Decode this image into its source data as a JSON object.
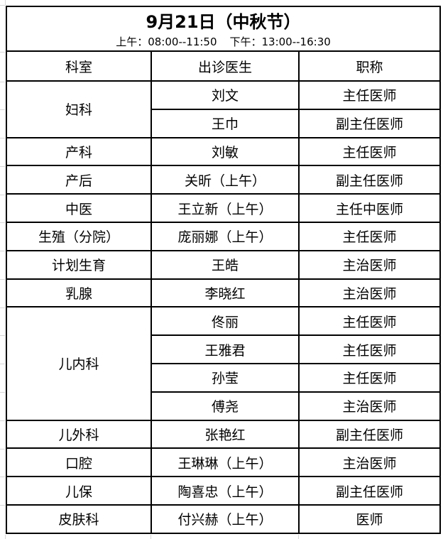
{
  "page": {
    "title": "9月21日（中秋节）",
    "hours": {
      "morning_label": "上午：08:00--11:50",
      "afternoon_label": "下午：13:00--16:30"
    }
  },
  "schedule": {
    "headers": {
      "department": "科室",
      "doctor": "出诊医生",
      "job_title": "职称"
    },
    "rows": [
      {
        "department": "妇科",
        "rowspan": 2,
        "doctor": "刘文",
        "job_title": "主任医师"
      },
      {
        "doctor": "王巾",
        "job_title": "副主任医师"
      },
      {
        "department": "产科",
        "doctor": "刘敏",
        "job_title": "主任医师"
      },
      {
        "department": "产后",
        "doctor": "关昕（上午）",
        "job_title": "副主任医师"
      },
      {
        "department": "中医",
        "doctor": "王立新（上午）",
        "job_title": "主任中医师"
      },
      {
        "department": "生殖（分院）",
        "doctor": "庞丽娜（上午）",
        "job_title": "主任医师"
      },
      {
        "department": "计划生育",
        "doctor": "王皓",
        "job_title": "主治医师"
      },
      {
        "department": "乳腺",
        "doctor": "李晓红",
        "job_title": "主治医师"
      },
      {
        "department": "儿内科",
        "rowspan": 4,
        "doctor": "佟丽",
        "job_title": "主任医师"
      },
      {
        "doctor": "王雅君",
        "job_title": "主任医师"
      },
      {
        "doctor": "孙莹",
        "job_title": "主任医师"
      },
      {
        "doctor": "傅尧",
        "job_title": "主治医师"
      },
      {
        "department": "儿外科",
        "doctor": "张艳红",
        "job_title": "副主任医师"
      },
      {
        "department": "口腔",
        "doctor": "王琳琳（上午）",
        "job_title": "主治医师"
      },
      {
        "department": "儿保",
        "doctor": "陶喜忠（上午）",
        "job_title": "副主任医师"
      },
      {
        "department": "皮肤科",
        "doctor": "付兴赫（上午）",
        "job_title": "医师"
      }
    ]
  }
}
